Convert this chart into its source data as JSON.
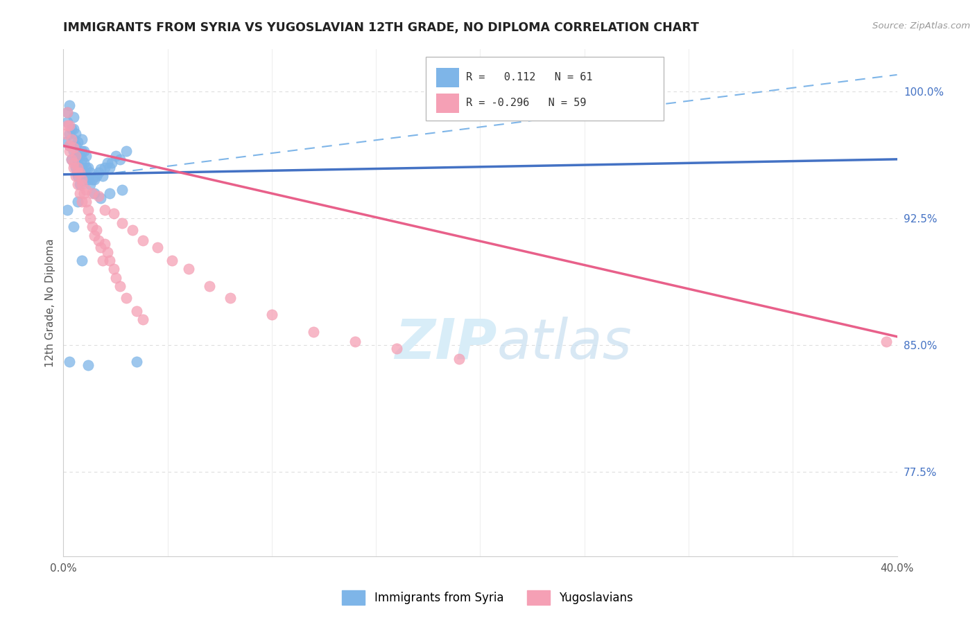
{
  "title": "IMMIGRANTS FROM SYRIA VS YUGOSLAVIAN 12TH GRADE, NO DIPLOMA CORRELATION CHART",
  "source": "Source: ZipAtlas.com",
  "ylabel": "12th Grade, No Diploma",
  "legend_labels": [
    "Immigrants from Syria",
    "Yugoslavians"
  ],
  "r_syria": 0.112,
  "n_syria": 61,
  "r_yugo": -0.296,
  "n_yugo": 59,
  "xlim": [
    0.0,
    0.4
  ],
  "ylim": [
    0.725,
    1.025
  ],
  "y_tick_right": [
    0.775,
    0.85,
    0.925,
    1.0
  ],
  "y_tick_right_labels": [
    "77.5%",
    "85.0%",
    "92.5%",
    "100.0%"
  ],
  "blue_color": "#7EB5E8",
  "pink_color": "#F5A0B5",
  "blue_line_color": "#4472C4",
  "pink_line_color": "#E8608A",
  "dashed_line_color": "#7EB5E8",
  "watermark_color": "#D8EDF8",
  "background_color": "#FFFFFF",
  "syria_x": [
    0.001,
    0.002,
    0.002,
    0.003,
    0.003,
    0.003,
    0.004,
    0.004,
    0.005,
    0.005,
    0.005,
    0.005,
    0.006,
    0.006,
    0.006,
    0.006,
    0.007,
    0.007,
    0.007,
    0.007,
    0.008,
    0.008,
    0.008,
    0.009,
    0.009,
    0.009,
    0.009,
    0.01,
    0.01,
    0.01,
    0.011,
    0.011,
    0.011,
    0.012,
    0.012,
    0.013,
    0.013,
    0.014,
    0.015,
    0.016,
    0.017,
    0.018,
    0.019,
    0.02,
    0.021,
    0.022,
    0.023,
    0.025,
    0.027,
    0.03,
    0.002,
    0.003,
    0.005,
    0.007,
    0.009,
    0.012,
    0.015,
    0.018,
    0.022,
    0.028,
    0.035
  ],
  "syria_y": [
    0.97,
    0.982,
    0.988,
    0.975,
    0.968,
    0.992,
    0.96,
    0.978,
    0.965,
    0.972,
    0.978,
    0.985,
    0.955,
    0.962,
    0.968,
    0.975,
    0.95,
    0.958,
    0.963,
    0.97,
    0.945,
    0.955,
    0.962,
    0.955,
    0.96,
    0.965,
    0.972,
    0.952,
    0.958,
    0.965,
    0.95,
    0.955,
    0.962,
    0.948,
    0.955,
    0.945,
    0.952,
    0.948,
    0.948,
    0.95,
    0.952,
    0.954,
    0.95,
    0.955,
    0.958,
    0.955,
    0.958,
    0.962,
    0.96,
    0.965,
    0.93,
    0.84,
    0.92,
    0.935,
    0.9,
    0.838,
    0.94,
    0.937,
    0.94,
    0.942,
    0.84
  ],
  "yugo_x": [
    0.001,
    0.002,
    0.002,
    0.003,
    0.003,
    0.004,
    0.004,
    0.005,
    0.005,
    0.006,
    0.006,
    0.007,
    0.007,
    0.008,
    0.008,
    0.009,
    0.009,
    0.01,
    0.011,
    0.012,
    0.013,
    0.014,
    0.015,
    0.016,
    0.017,
    0.018,
    0.019,
    0.02,
    0.021,
    0.022,
    0.024,
    0.025,
    0.027,
    0.03,
    0.035,
    0.038,
    0.003,
    0.005,
    0.007,
    0.009,
    0.011,
    0.014,
    0.017,
    0.02,
    0.024,
    0.028,
    0.033,
    0.038,
    0.045,
    0.052,
    0.06,
    0.07,
    0.08,
    0.1,
    0.12,
    0.14,
    0.16,
    0.19,
    0.395
  ],
  "yugo_y": [
    0.975,
    0.98,
    0.988,
    0.968,
    0.98,
    0.96,
    0.972,
    0.955,
    0.967,
    0.95,
    0.962,
    0.945,
    0.955,
    0.94,
    0.952,
    0.935,
    0.945,
    0.94,
    0.935,
    0.93,
    0.925,
    0.92,
    0.915,
    0.918,
    0.912,
    0.908,
    0.9,
    0.91,
    0.905,
    0.9,
    0.895,
    0.89,
    0.885,
    0.878,
    0.87,
    0.865,
    0.965,
    0.958,
    0.952,
    0.948,
    0.942,
    0.94,
    0.938,
    0.93,
    0.928,
    0.922,
    0.918,
    0.912,
    0.908,
    0.9,
    0.895,
    0.885,
    0.878,
    0.868,
    0.858,
    0.852,
    0.848,
    0.842,
    0.852
  ],
  "syria_line_x": [
    0.0,
    0.4
  ],
  "syria_line_y": [
    0.951,
    0.96
  ],
  "yugo_line_x": [
    0.0,
    0.4
  ],
  "yugo_line_y": [
    0.968,
    0.855
  ],
  "dash_line_x": [
    0.025,
    0.4
  ],
  "dash_line_y": [
    0.952,
    1.01
  ]
}
